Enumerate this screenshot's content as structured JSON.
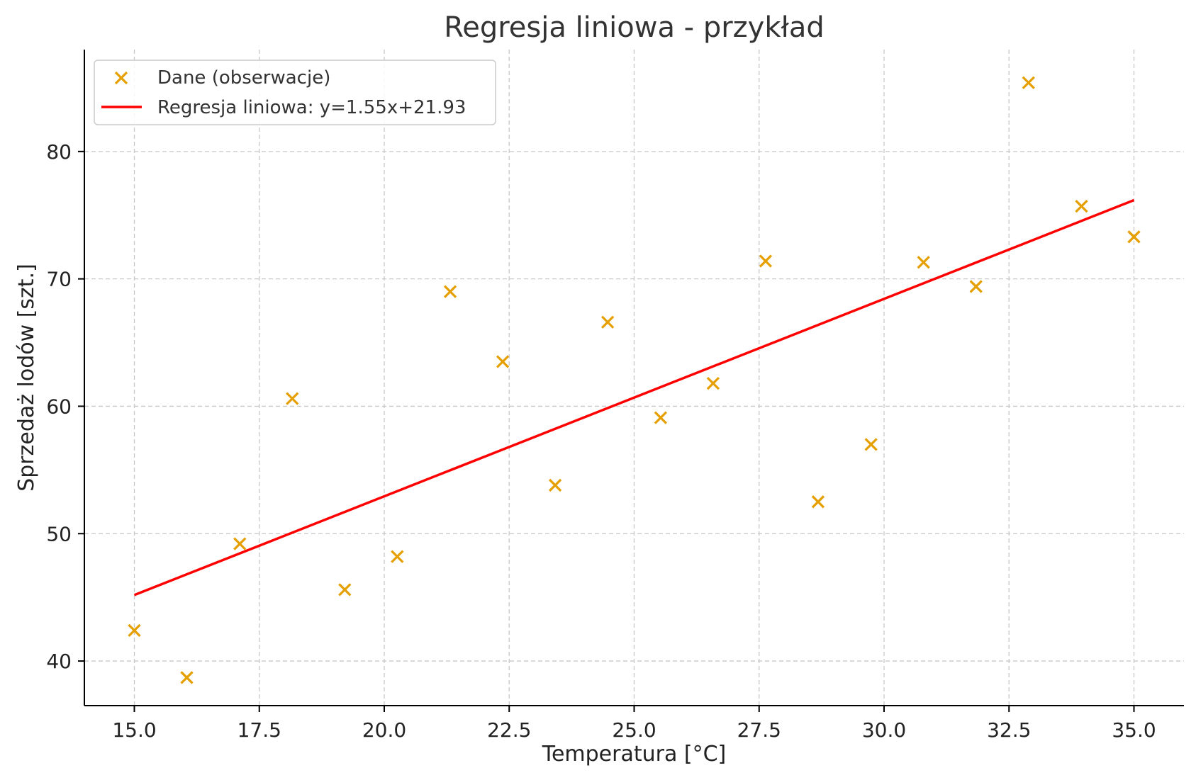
{
  "chart_data": {
    "type": "scatter",
    "title": "Regresja liniowa - przykład",
    "xlabel": "Temperatura [°C]",
    "ylabel": "Sprzedaż lodów [szt.]",
    "xlim": [
      14.0,
      36.0
    ],
    "ylim": [
      36.5,
      88.0
    ],
    "xticks": [
      15.0,
      17.5,
      20.0,
      22.5,
      25.0,
      27.5,
      30.0,
      32.5,
      35.0
    ],
    "xtick_labels": [
      "15.0",
      "17.5",
      "20.0",
      "22.5",
      "25.0",
      "27.5",
      "30.0",
      "32.5",
      "35.0"
    ],
    "yticks": [
      40,
      50,
      60,
      70,
      80
    ],
    "ytick_labels": [
      "40",
      "50",
      "60",
      "70",
      "80"
    ],
    "grid": true,
    "legend_position": "top-left",
    "series": [
      {
        "name": "Dane (obserwacje)",
        "kind": "scatter",
        "marker": "x",
        "color": "#E69F00",
        "x": [
          15.0,
          16.05,
          17.11,
          18.16,
          19.21,
          20.26,
          21.32,
          22.37,
          23.42,
          24.47,
          25.53,
          26.58,
          27.63,
          28.68,
          29.74,
          30.79,
          31.84,
          32.89,
          33.95,
          35.0
        ],
        "y": [
          42.4,
          38.7,
          49.2,
          60.6,
          45.6,
          48.2,
          69.0,
          63.5,
          53.8,
          66.6,
          59.1,
          61.8,
          71.4,
          52.5,
          57.0,
          71.3,
          69.4,
          85.4,
          75.7,
          73.3
        ]
      },
      {
        "name": "Regresja liniowa: y=1.55x+21.93",
        "kind": "line",
        "color": "#FF0000",
        "x": [
          15.0,
          35.0
        ],
        "y": [
          45.18,
          76.18
        ]
      }
    ]
  }
}
